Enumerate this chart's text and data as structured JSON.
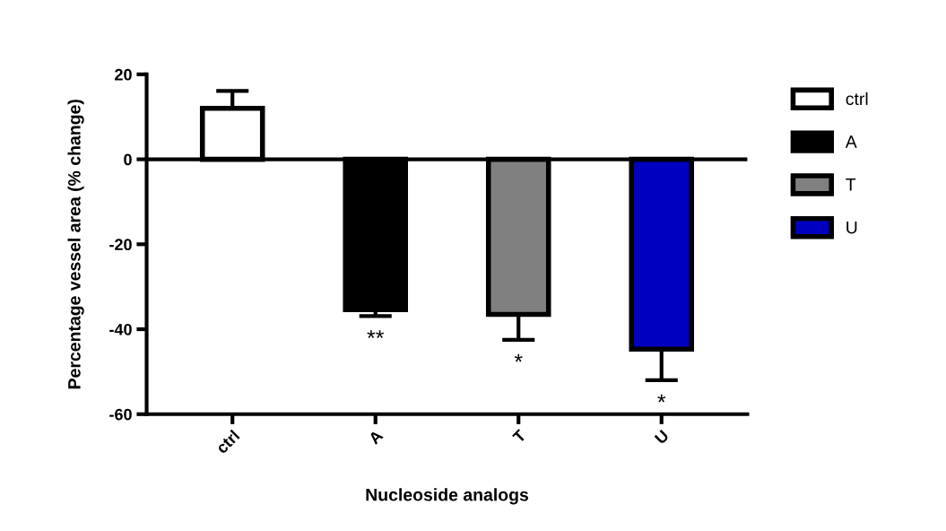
{
  "chart_data": {
    "type": "bar",
    "xlabel": "Nucleoside analogs",
    "ylabel": "Percentage vessel area (% change)",
    "categories": [
      "ctrl",
      "A",
      "T",
      "U"
    ],
    "series": [
      {
        "name": "ctrl",
        "color": "#ffffff",
        "values": [
          12.0,
          null,
          null,
          null
        ],
        "errors": [
          [
            12.0,
            16.1
          ],
          null,
          null,
          null
        ]
      },
      {
        "name": "A",
        "color": "#000000",
        "values": [
          null,
          -35.4,
          null,
          null
        ],
        "errors": [
          null,
          [
            -36.9,
            -35.4
          ],
          null,
          null
        ]
      },
      {
        "name": "T",
        "color": "#808080",
        "values": [
          null,
          null,
          -36.5,
          null
        ],
        "errors": [
          null,
          null,
          [
            -42.5,
            -36.5
          ],
          null
        ]
      },
      {
        "name": "U",
        "color": "#0000c0",
        "values": [
          null,
          null,
          null,
          -44.7
        ],
        "errors": [
          null,
          null,
          null,
          [
            -52.0,
            -44.7
          ]
        ]
      }
    ],
    "ylim": [
      -60,
      20
    ],
    "yticks": [
      -60,
      -40,
      -20,
      0,
      20
    ],
    "ref_lines": [
      {
        "axis": "y",
        "value": 0
      }
    ],
    "annotations": [
      {
        "text": "**",
        "x": "A",
        "y": -35.4
      },
      {
        "text": "*",
        "x": "T",
        "y": -36.5
      },
      {
        "text": "*",
        "x": "U",
        "y": -44.7
      }
    ],
    "legend": "right"
  }
}
